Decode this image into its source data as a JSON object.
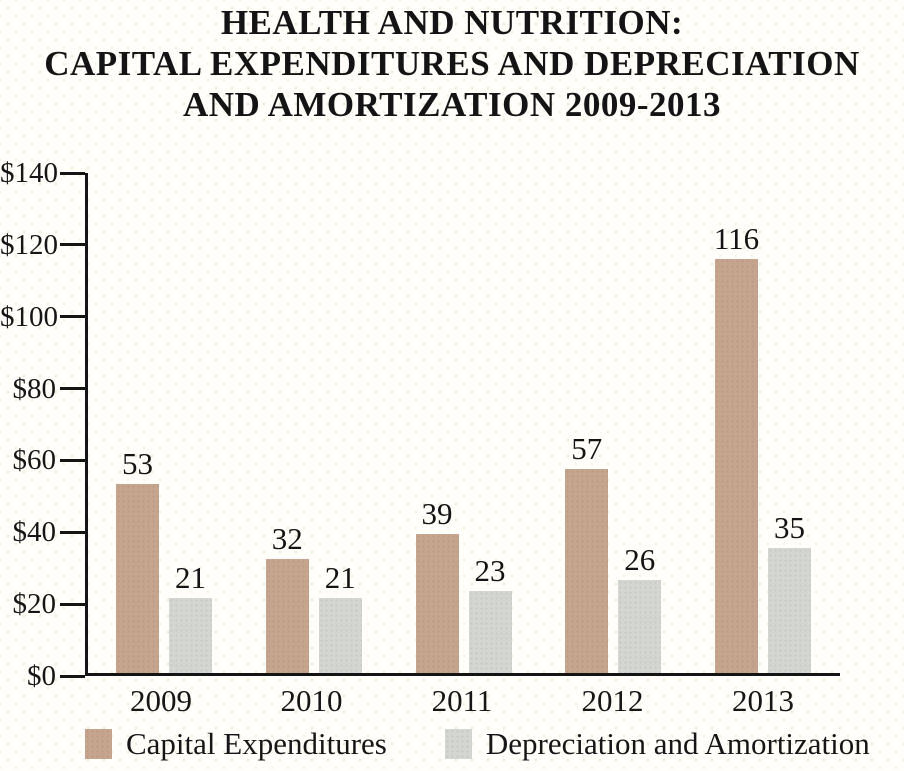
{
  "chart_data": {
    "type": "bar",
    "title_lines": [
      "HEALTH AND NUTRITION:",
      "CAPITAL EXPENDITURES AND DEPRECIATION",
      "AND AMORTIZATION 2009-2013"
    ],
    "categories": [
      "2009",
      "2010",
      "2011",
      "2012",
      "2013"
    ],
    "series": [
      {
        "name": "Capital Expenditures",
        "color": "#c6a58e",
        "values": [
          53,
          32,
          39,
          57,
          116
        ]
      },
      {
        "name": "Depreciation and Amortization",
        "color": "#d4d6d2",
        "values": [
          21,
          21,
          23,
          26,
          35
        ]
      }
    ],
    "y_ticks": [
      "$140",
      "$120",
      "$100",
      "$80",
      "$60",
      "$40",
      "$20",
      "$0"
    ],
    "ylim": [
      0,
      140
    ],
    "xlabel": "",
    "ylabel": "",
    "grid": false,
    "legend_position": "bottom",
    "value_labels": true,
    "axis_color": "#141414"
  }
}
